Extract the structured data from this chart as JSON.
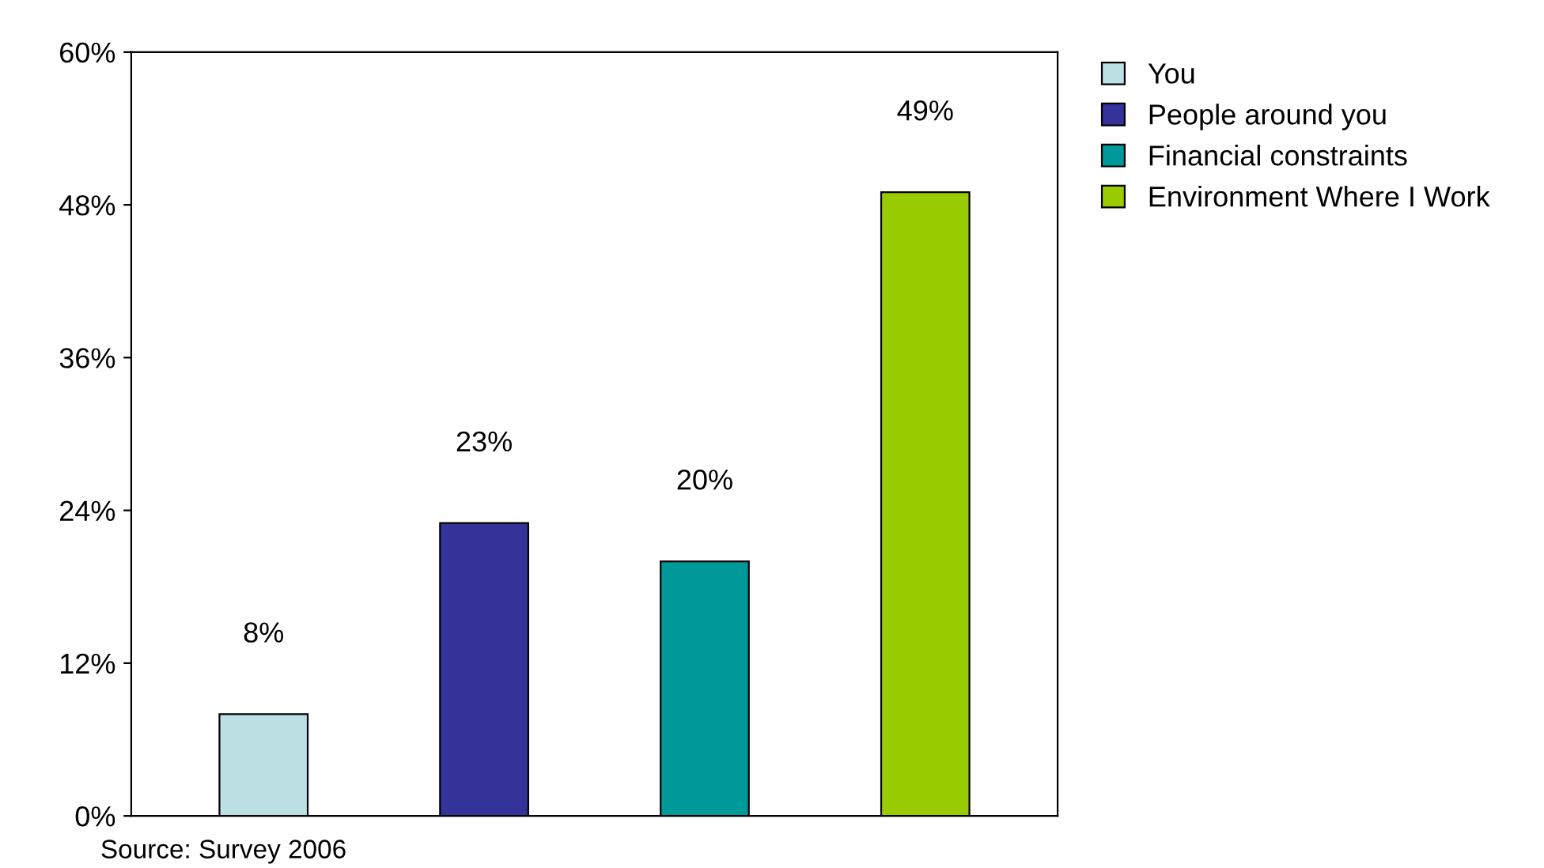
{
  "chart_data": {
    "type": "bar",
    "categories": [
      null,
      null,
      null,
      null
    ],
    "series": [
      {
        "name": "You",
        "color": "#bde0e4",
        "values": [
          8,
          null,
          null,
          null
        ],
        "value_labels": [
          "8%",
          null,
          null,
          null
        ]
      },
      {
        "name": "People around you",
        "color": "#333399",
        "values": [
          null,
          23,
          null,
          null
        ],
        "value_labels": [
          null,
          "23%",
          null,
          null
        ]
      },
      {
        "name": "Financial constraints",
        "color": "#009999",
        "values": [
          null,
          null,
          20,
          null
        ],
        "value_labels": [
          null,
          null,
          "20%",
          null
        ]
      },
      {
        "name": "Environment Where I Work",
        "color": "#99cc00",
        "values": [
          null,
          null,
          null,
          49
        ],
        "value_labels": [
          null,
          null,
          null,
          "49%"
        ]
      }
    ],
    "ylim": [
      0,
      60
    ],
    "yticks": [
      {
        "value": 0,
        "label": "0%"
      },
      {
        "value": 12,
        "label": "12%"
      },
      {
        "value": 24,
        "label": "24%"
      },
      {
        "value": 36,
        "label": "36%"
      },
      {
        "value": 48,
        "label": "48%"
      },
      {
        "value": 60,
        "label": "60%"
      }
    ],
    "legend": "top right",
    "grid": false,
    "annotations": [
      "Source: Survey 2006"
    ]
  }
}
